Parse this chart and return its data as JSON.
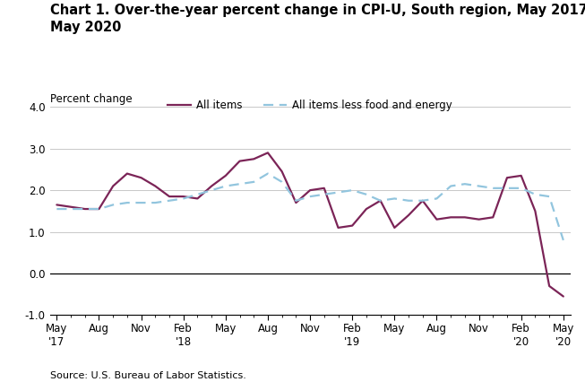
{
  "title": "Chart 1. Over-the-year percent change in CPI-U, South region, May 2017–\nMay 2020",
  "ylabel": "Percent change",
  "source": "Source: U.S. Bureau of Labor Statistics.",
  "xtick_labels": [
    "May\n'17",
    "Aug",
    "Nov",
    "Feb\n'18",
    "May",
    "Aug",
    "Nov",
    "Feb\n'19",
    "May",
    "Aug",
    "Nov",
    "Feb\n'20",
    "May\n'20"
  ],
  "xtick_pos": [
    0,
    3,
    6,
    9,
    12,
    15,
    18,
    21,
    24,
    27,
    30,
    33,
    36
  ],
  "all_items": [
    1.65,
    1.6,
    1.55,
    1.55,
    2.1,
    2.4,
    2.3,
    2.1,
    1.85,
    1.85,
    1.8,
    2.1,
    2.35,
    2.7,
    2.75,
    2.9,
    2.45,
    1.7,
    2.0,
    2.05,
    1.1,
    1.15,
    1.55,
    1.75,
    1.1,
    1.4,
    1.75,
    1.3,
    1.35,
    1.35,
    1.3,
    1.35,
    2.3,
    2.35,
    1.5,
    -0.3,
    -0.55
  ],
  "all_items_less": [
    1.55,
    1.55,
    1.55,
    1.55,
    1.65,
    1.7,
    1.7,
    1.7,
    1.75,
    1.8,
    1.9,
    2.0,
    2.1,
    2.15,
    2.2,
    2.4,
    2.2,
    1.75,
    1.85,
    1.9,
    1.95,
    2.0,
    1.9,
    1.75,
    1.8,
    1.75,
    1.75,
    1.8,
    2.1,
    2.15,
    2.1,
    2.05,
    2.05,
    2.05,
    1.9,
    1.85,
    0.8
  ],
  "ylim": [
    -1.0,
    4.0
  ],
  "yticks": [
    -1.0,
    0.0,
    1.0,
    2.0,
    3.0,
    4.0
  ],
  "all_items_color": "#7b2457",
  "all_items_less_color": "#92C5DE",
  "background_color": "#ffffff",
  "grid_color": "#c8c8c8",
  "legend_all_items": "All items",
  "legend_all_items_less": "All items less food and energy",
  "title_fontsize": 10.5,
  "ylabel_fontsize": 8.5,
  "tick_fontsize": 8.5,
  "source_fontsize": 8.0,
  "legend_fontsize": 8.5
}
